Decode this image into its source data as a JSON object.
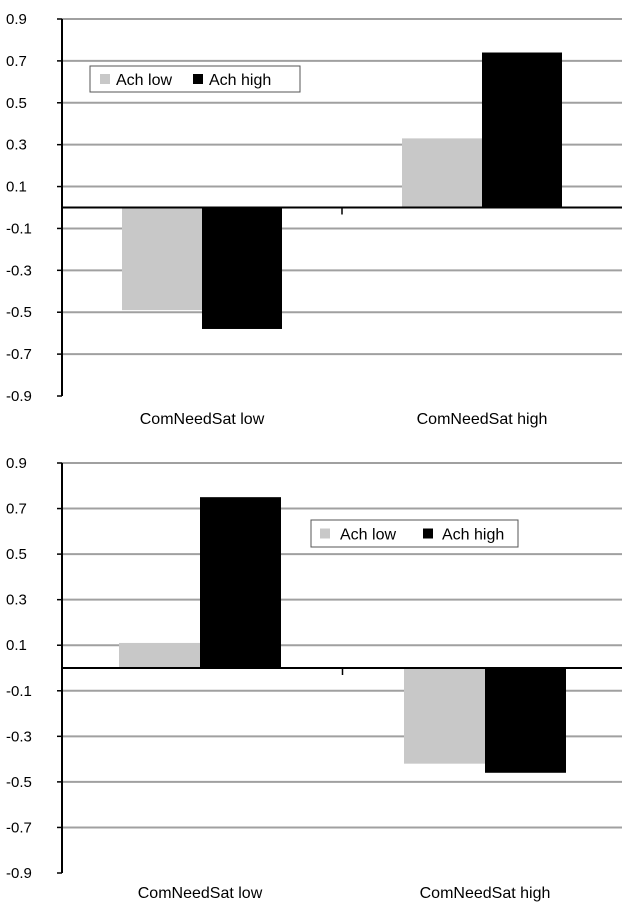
{
  "colors": {
    "low": "#c8c8c8",
    "high": "#000000",
    "grid": "#a0a0a0",
    "axis": "#000000"
  },
  "chart_data": [
    {
      "type": "bar",
      "categories": [
        "ComNeedSat low",
        "ComNeedSat high"
      ],
      "series": [
        {
          "name": "Ach low",
          "values": [
            -0.49,
            0.33
          ]
        },
        {
          "name": "Ach high",
          "values": [
            -0.58,
            0.74
          ]
        }
      ],
      "yticks": [
        "0.9",
        "0.7",
        "0.5",
        "0.3",
        "0.1",
        "-0.1",
        "-0.3",
        "-0.5",
        "-0.7",
        "-0.9"
      ],
      "ylim": [
        -0.9,
        0.9
      ],
      "grid": true,
      "legend": "top-left"
    },
    {
      "type": "bar",
      "categories": [
        "ComNeedSat low",
        "ComNeedSat high"
      ],
      "series": [
        {
          "name": "Ach low",
          "values": [
            0.11,
            -0.42
          ]
        },
        {
          "name": "Ach high",
          "values": [
            0.75,
            -0.46
          ]
        }
      ],
      "yticks": [
        "0.9",
        "0.7",
        "0.5",
        "0.3",
        "0.1",
        "-0.1",
        "-0.3",
        "-0.5",
        "-0.7",
        "-0.9"
      ],
      "ylim": [
        -0.9,
        0.9
      ],
      "grid": true,
      "legend": "top-right"
    }
  ]
}
